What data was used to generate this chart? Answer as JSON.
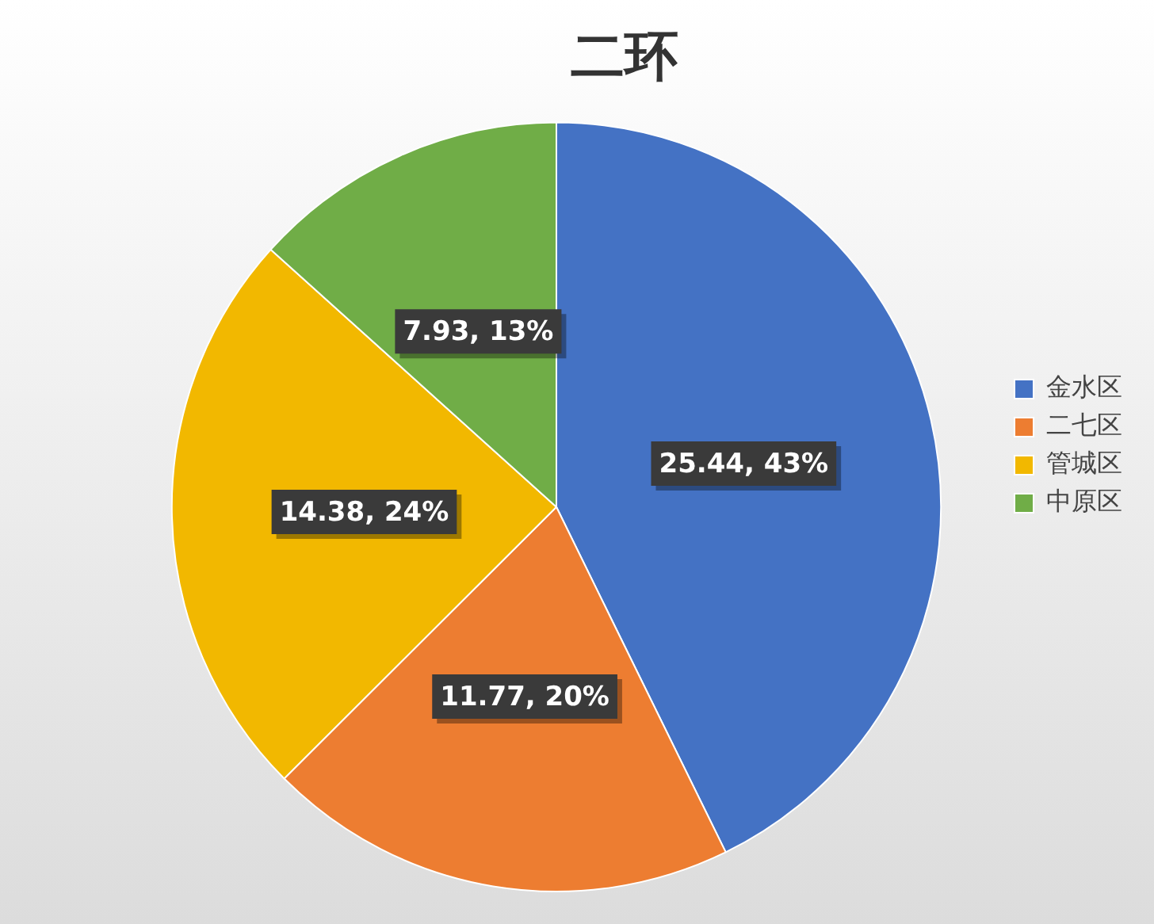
{
  "chart_data": {
    "type": "pie",
    "title": "二环",
    "categories": [
      "金水区",
      "二七区",
      "管城区",
      "中原区"
    ],
    "values": [
      25.44,
      11.77,
      14.38,
      7.93
    ],
    "colors": [
      "#4472c4",
      "#ed7d31",
      "#f2b800",
      "#70ad47"
    ],
    "value_labels": [
      "25.44, 43%",
      "11.77, 20%",
      "14.38, 24%",
      "7.93, 13%"
    ],
    "legend": "right"
  }
}
